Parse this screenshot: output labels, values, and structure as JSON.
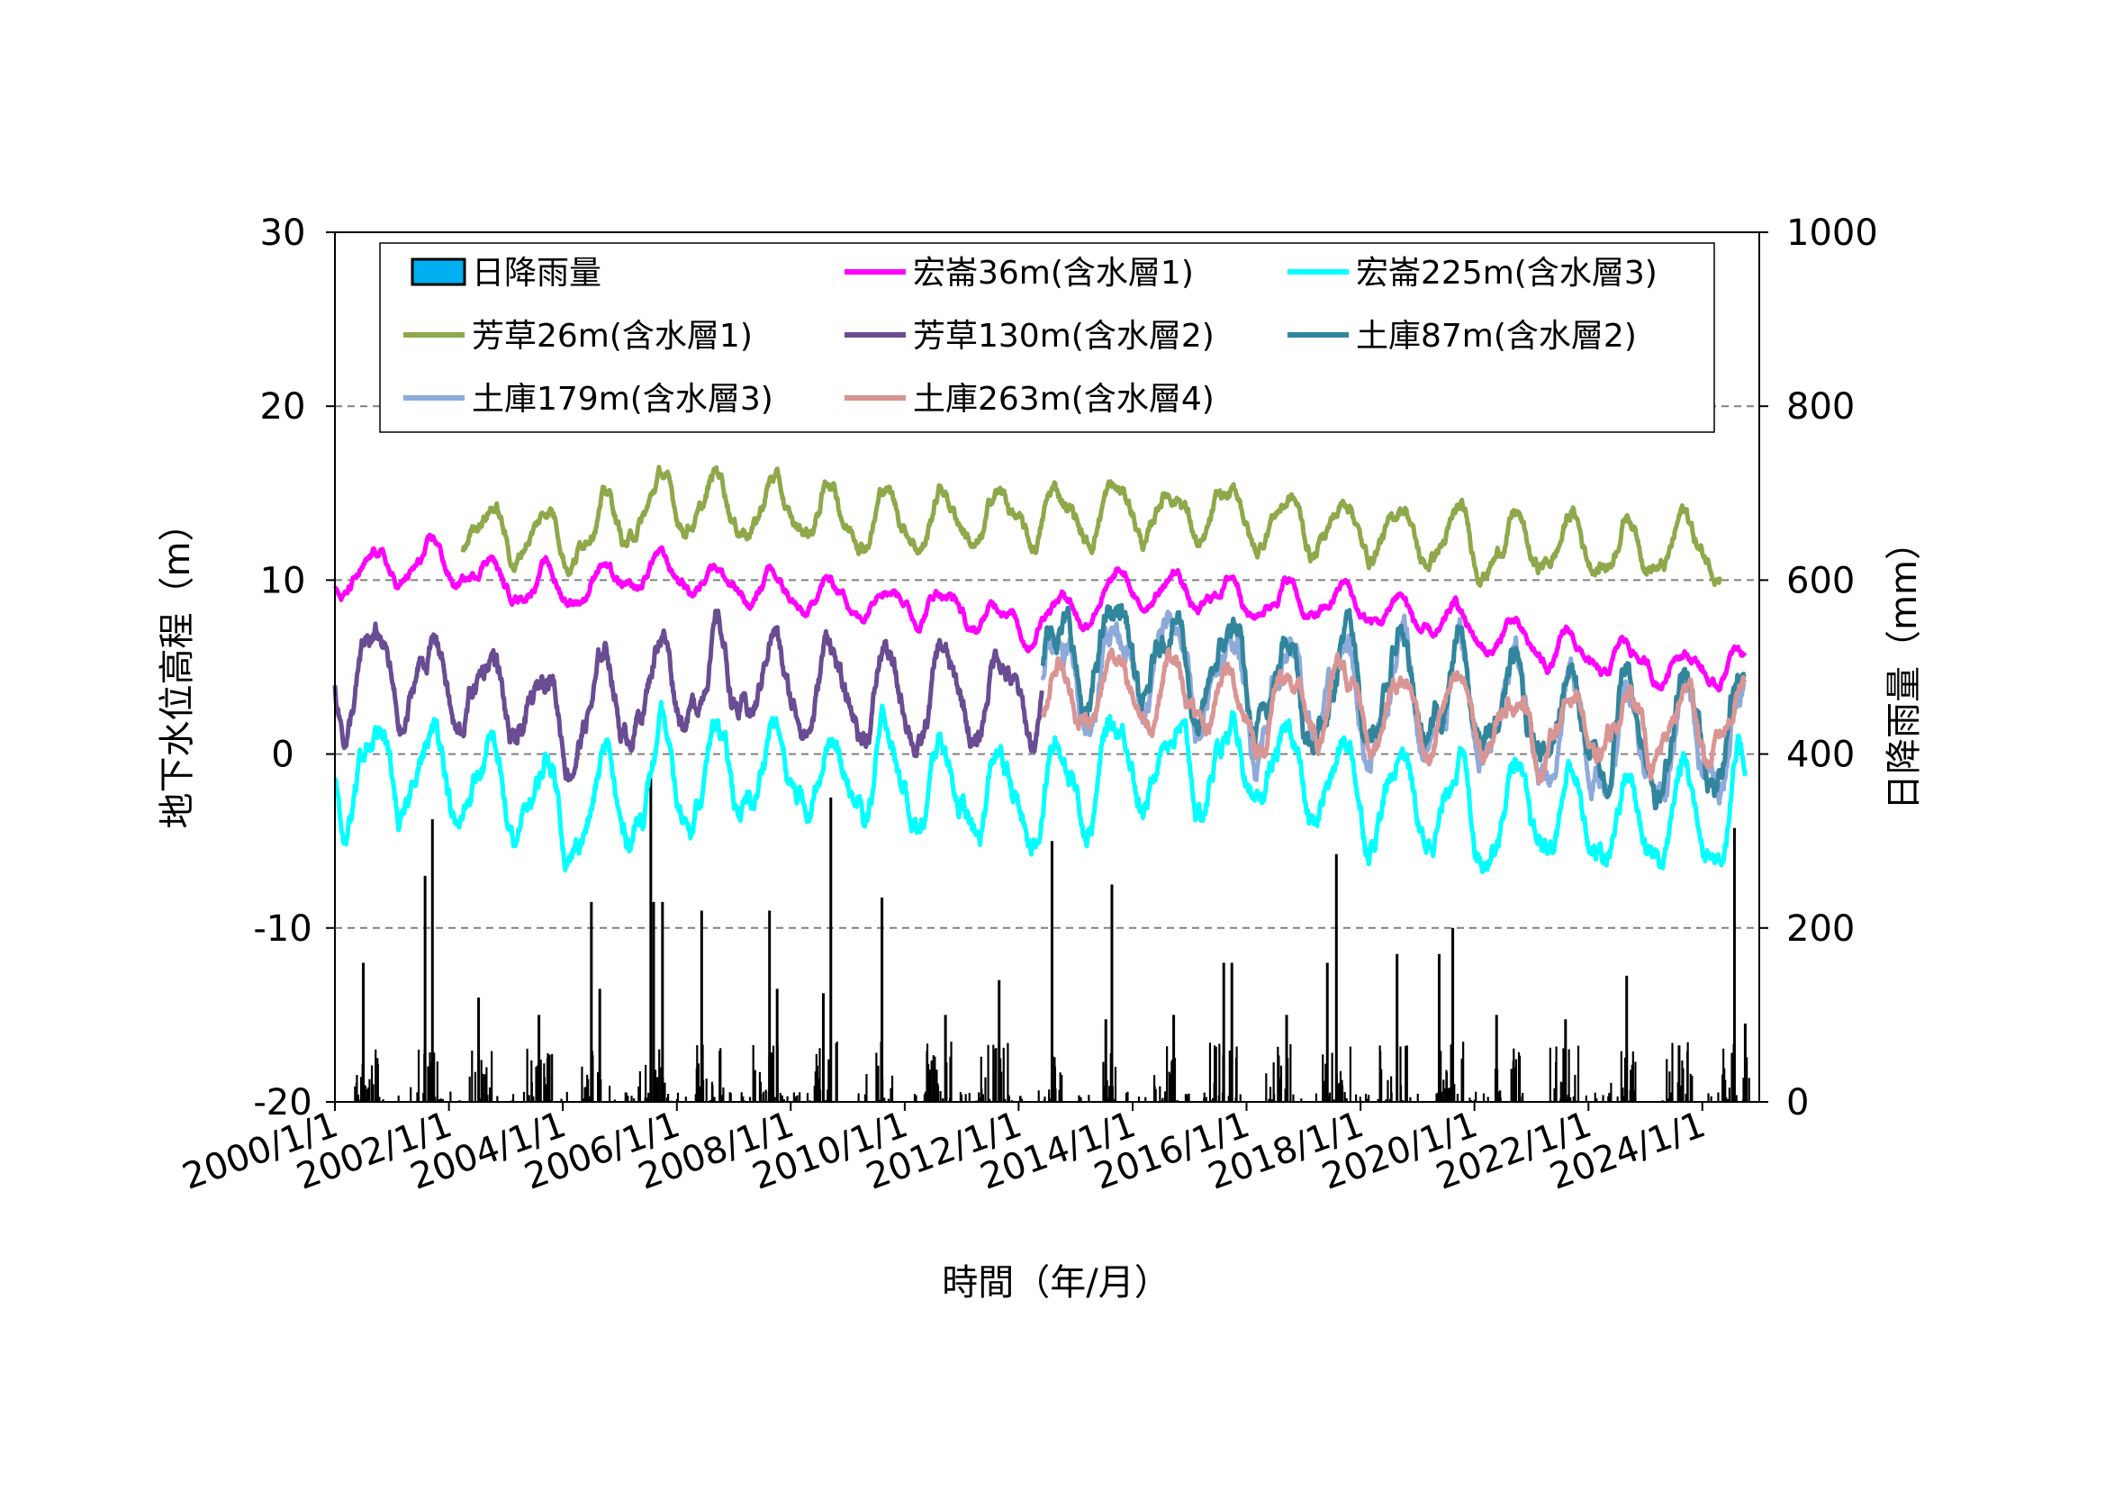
{
  "chart_data": {
    "type": "line",
    "title": "",
    "xlabel": "時間（年/月）",
    "ylabel_left": "地下水位高程（m）",
    "ylabel_right": "日降雨量（mm）",
    "xlim": [
      "2000/1/1",
      "2024/12/31"
    ],
    "x_ticks": [
      "2000/1/1",
      "2002/1/1",
      "2004/1/1",
      "2006/1/1",
      "2008/1/1",
      "2010/1/1",
      "2012/1/1",
      "2014/1/1",
      "2016/1/1",
      "2018/1/1",
      "2020/1/1",
      "2022/1/1",
      "2024/1/1"
    ],
    "ylim_left": [
      -20,
      30
    ],
    "y_ticks_left": [
      "30",
      "20",
      "10",
      "0",
      "-10",
      "-20"
    ],
    "ylim_right": [
      0,
      1000
    ],
    "y_ticks_right": [
      "1000",
      "800",
      "600",
      "400",
      "200",
      "0"
    ],
    "grid": "horizontal dashed",
    "legend_position": "top",
    "rain": {
      "name": "日降雨量",
      "color": "#00b0f0",
      "peaks": [
        {
          "date": "2000/7/1",
          "value": 160
        },
        {
          "date": "2001/8/1",
          "value": 260
        },
        {
          "date": "2001/9/17",
          "value": 325
        },
        {
          "date": "2002/7/10",
          "value": 120
        },
        {
          "date": "2003/8/1",
          "value": 100
        },
        {
          "date": "2004/7/2",
          "value": 230
        },
        {
          "date": "2004/8/25",
          "value": 130
        },
        {
          "date": "2005/7/18",
          "value": 380
        },
        {
          "date": "2005/8/5",
          "value": 230
        },
        {
          "date": "2005/10/1",
          "value": 230
        },
        {
          "date": "2006/6/9",
          "value": 220
        },
        {
          "date": "2007/8/18",
          "value": 220
        },
        {
          "date": "2007/10/6",
          "value": 130
        },
        {
          "date": "2008/7/28",
          "value": 125
        },
        {
          "date": "2008/9/14",
          "value": 350
        },
        {
          "date": "2009/8/8",
          "value": 235
        },
        {
          "date": "2010/9/19",
          "value": 100
        },
        {
          "date": "2011/8/29",
          "value": 140
        },
        {
          "date": "2012/8/2",
          "value": 300
        },
        {
          "date": "2013/8/21",
          "value": 250
        },
        {
          "date": "2013/7/13",
          "value": 95
        },
        {
          "date": "2014/9/21",
          "value": 100
        },
        {
          "date": "2015/8/8",
          "value": 160
        },
        {
          "date": "2015/9/29",
          "value": 160
        },
        {
          "date": "2016/9/14",
          "value": 100
        },
        {
          "date": "2017/6/2",
          "value": 160
        },
        {
          "date": "2017/7/30",
          "value": 285
        },
        {
          "date": "2018/8/23",
          "value": 170
        },
        {
          "date": "2019/5/20",
          "value": 170
        },
        {
          "date": "2019/8/15",
          "value": 200
        },
        {
          "date": "2020/5/22",
          "value": 100
        },
        {
          "date": "2021/8/7",
          "value": 95
        },
        {
          "date": "2022/9/3",
          "value": 145
        },
        {
          "date": "2023/8/5",
          "value": 65
        },
        {
          "date": "2024/7/25",
          "value": 315
        },
        {
          "date": "2024/10/2",
          "value": 90
        }
      ]
    },
    "series": [
      {
        "name": "宏崙36m(含水層1)",
        "color": "#ff00ff",
        "width": 5,
        "start": "2000/1/1",
        "end": "2024/10/1",
        "points": [
          [
            "2000/1/1",
            10
          ],
          [
            "2001/9/1",
            11
          ],
          [
            "2003/1/1",
            10
          ],
          [
            "2004/1/1",
            9.5
          ],
          [
            "2006/1/1",
            10.5
          ],
          [
            "2008/1/1",
            9
          ],
          [
            "2010/1/1",
            9
          ],
          [
            "2012/1/1",
            7.5
          ],
          [
            "2014/1/1",
            9.5
          ],
          [
            "2016/1/1",
            9
          ],
          [
            "2018/1/1",
            8.5
          ],
          [
            "2020/1/1",
            7
          ],
          [
            "2022/1/1",
            5.5
          ],
          [
            "2024/1/1",
            5
          ],
          [
            "2024/10/1",
            5
          ]
        ],
        "amplitude": 1.0
      },
      {
        "name": "宏崙225m(含水層3)",
        "color": "#00ffff",
        "width": 5,
        "start": "2000/1/1",
        "end": "2024/10/1",
        "points": [
          [
            "2000/1/1",
            -1.5
          ],
          [
            "2001/9/1",
            -1
          ],
          [
            "2003/1/1",
            -2.5
          ],
          [
            "2004/6/1",
            -3.5
          ],
          [
            "2006/1/1",
            -1.5
          ],
          [
            "2008/1/1",
            -1
          ],
          [
            "2010/1/1",
            -1.5
          ],
          [
            "2012/1/1",
            -3
          ],
          [
            "2014/1/1",
            0
          ],
          [
            "2016/1/1",
            -1
          ],
          [
            "2018/1/1",
            -2
          ],
          [
            "2020/1/1",
            -3
          ],
          [
            "2022/1/1",
            -4
          ],
          [
            "2024/1/1",
            -3.5
          ],
          [
            "2024/10/1",
            -3
          ]
        ],
        "amplitude": 2.5
      },
      {
        "name": "芳草26m(含水層1)",
        "color": "#8fa84a",
        "width": 5,
        "start": "2002/4/1",
        "end": "2024/5/1",
        "points": [
          [
            "2002/4/1",
            13
          ],
          [
            "2004/1/1",
            12.5
          ],
          [
            "2006/1/1",
            14.5
          ],
          [
            "2008/1/1",
            14
          ],
          [
            "2010/1/1",
            13.5
          ],
          [
            "2012/1/1",
            13.5
          ],
          [
            "2014/1/1",
            14
          ],
          [
            "2016/1/1",
            13.5
          ],
          [
            "2018/1/1",
            13
          ],
          [
            "2020/1/1",
            12
          ],
          [
            "2022/1/1",
            12
          ],
          [
            "2024/5/1",
            12
          ]
        ],
        "amplitude": 1.5
      },
      {
        "name": "芳草130m(含水層2)",
        "color": "#6a4c93",
        "width": 5,
        "start": "2000/1/1",
        "end": "2012/6/1",
        "points": [
          [
            "2000/1/1",
            4.5
          ],
          [
            "2002/1/1",
            4
          ],
          [
            "2004/1/1",
            2
          ],
          [
            "2006/1/1",
            4.5
          ],
          [
            "2008/1/1",
            4
          ],
          [
            "2010/1/1",
            3
          ],
          [
            "2012/6/1",
            3.5
          ]
        ],
        "amplitude": 2.5
      },
      {
        "name": "土庫87m(含水層2)",
        "color": "#31859c",
        "width": 5,
        "start": "2012/6/1",
        "end": "2024/10/1",
        "points": [
          [
            "2012/6/1",
            5
          ],
          [
            "2014/1/1",
            6
          ],
          [
            "2016/1/1",
            4
          ],
          [
            "2018/1/1",
            4
          ],
          [
            "2020/1/1",
            3
          ],
          [
            "2022/1/1",
            1.5
          ],
          [
            "2024/1/1",
            1
          ],
          [
            "2024/10/1",
            2
          ]
        ],
        "amplitude": 3.0
      },
      {
        "name": "土庫179m(含水層3)",
        "color": "#8eaadb",
        "width": 5,
        "start": "2012/6/1",
        "end": "2024/10/1",
        "points": [
          [
            "2012/6/1",
            4.5
          ],
          [
            "2014/1/1",
            5.5
          ],
          [
            "2016/1/1",
            3.5
          ],
          [
            "2018/1/1",
            3.5
          ],
          [
            "2020/1/1",
            2.5
          ],
          [
            "2022/1/1",
            1
          ],
          [
            "2024/1/1",
            0.5
          ],
          [
            "2024/10/1",
            1.5
          ]
        ],
        "amplitude": 3.0
      },
      {
        "name": "土庫263m(含水層4)",
        "color": "#d99594",
        "width": 5,
        "start": "2012/6/1",
        "end": "2024/10/1",
        "points": [
          [
            "2012/6/1",
            3
          ],
          [
            "2014/1/1",
            4
          ],
          [
            "2016/1/1",
            2.5
          ],
          [
            "2018/1/1",
            3
          ],
          [
            "2020/1/1",
            2
          ],
          [
            "2022/1/1",
            1.5
          ],
          [
            "2024/1/1",
            1.5
          ],
          [
            "2024/10/1",
            2.5
          ]
        ],
        "amplitude": 2.0
      }
    ]
  }
}
